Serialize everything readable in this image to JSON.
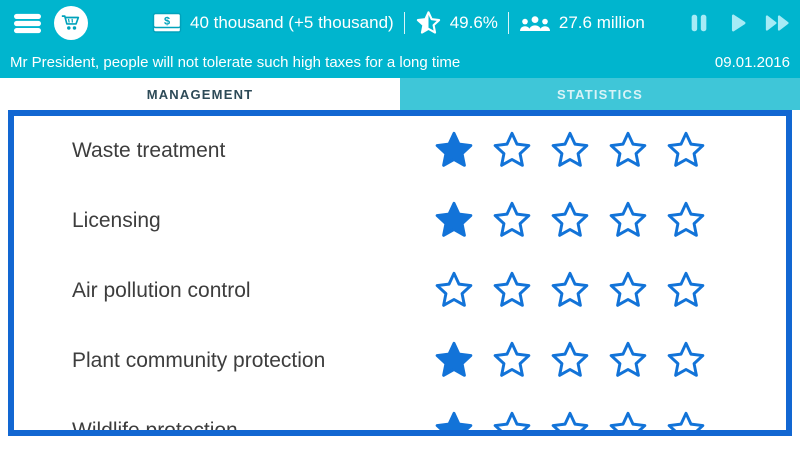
{
  "colors": {
    "topbar_teal": "#00b5ce",
    "inactive_tab_teal": "#3fc6d8",
    "accent_blue": "#1273d8",
    "panel_border_blue": "#1267d2",
    "media_icon_blue": "#a6ebf6",
    "active_tab_text": "#2d4a57",
    "row_text": "#3d3d3d"
  },
  "topbar": {
    "money": "40 thousand (+5 thousand)",
    "approval": "49.6%",
    "population": "27.6 million"
  },
  "icons": {
    "menu": "hamburger-menu",
    "shop": "shopping-cart",
    "money": "banknote-dollar",
    "approval": "half-star",
    "population": "people-crowd",
    "pause": "pause-bars",
    "play": "play-triangle",
    "fast_forward": "double-play-triangle"
  },
  "message_bar": {
    "message": "Mr President, people will not tolerate such high taxes for a long time",
    "date": "09.01.2016"
  },
  "tabs": [
    {
      "label": "MANAGEMENT",
      "active": true
    },
    {
      "label": "STATISTICS",
      "active": false
    }
  ],
  "management_list": {
    "max_stars": 5,
    "rows": [
      {
        "label": "Waste treatment",
        "rating": 1
      },
      {
        "label": "Licensing",
        "rating": 1
      },
      {
        "label": "Air pollution control",
        "rating": 0
      },
      {
        "label": "Plant community protection",
        "rating": 1
      },
      {
        "label": "Wildlife protection",
        "rating": 1
      }
    ]
  }
}
